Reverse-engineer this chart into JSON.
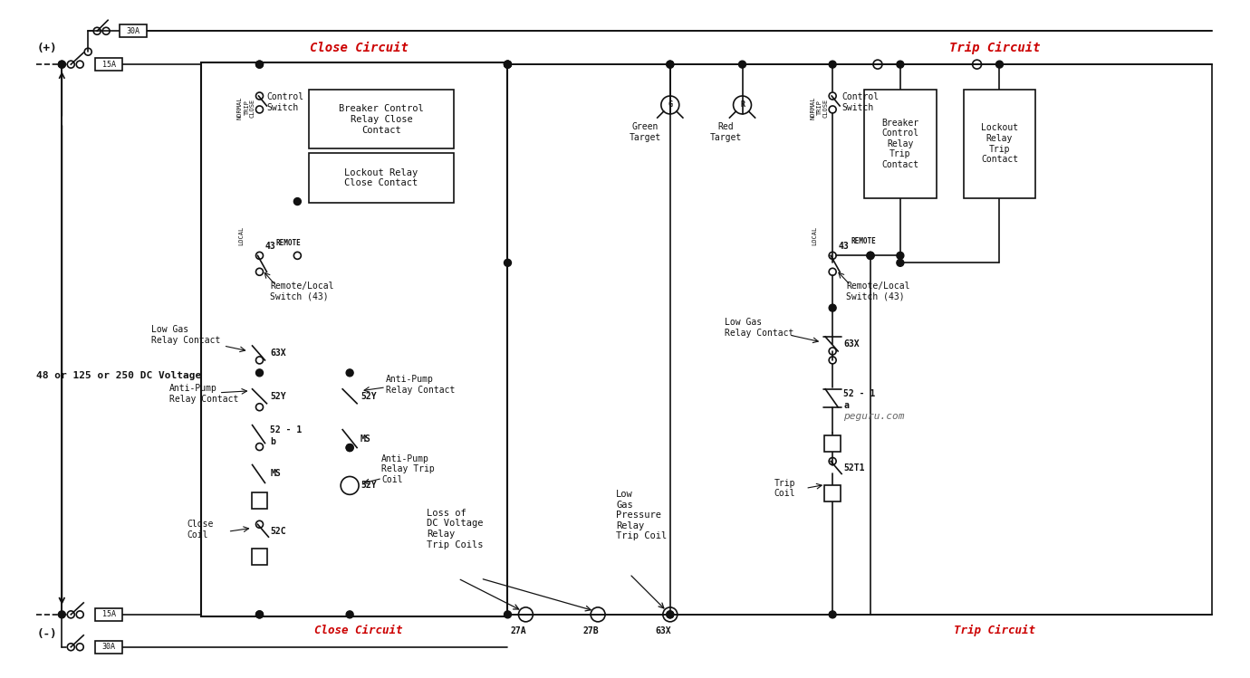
{
  "bg_color": "#ffffff",
  "line_color": "#111111",
  "red_color": "#cc0000",
  "fig_width": 13.8,
  "fig_height": 7.49,
  "close_circuit_label": "Close Circuit",
  "trip_circuit_label": "Trip Circuit",
  "voltage_label": "48 or 125 or 250 DC Voltage",
  "plus_label": "(+)",
  "minus_label": "(-)",
  "peguru_label": "peguru.com",
  "lw": 1.2
}
